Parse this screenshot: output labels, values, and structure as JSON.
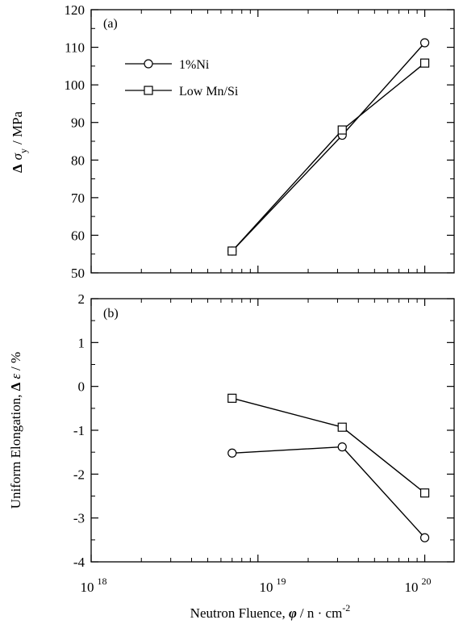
{
  "chart_data": [
    {
      "type": "line",
      "panel_label": "(a)",
      "xscale": "log",
      "xlim": [
        1e+18,
        1.5e+20
      ],
      "ylim": [
        50,
        120
      ],
      "yticks": [
        50,
        60,
        70,
        80,
        90,
        100,
        110,
        120
      ],
      "ytick_labels": [
        "50",
        "60",
        "70",
        "80",
        "90",
        "100",
        "110",
        "120"
      ],
      "ylabel_parts": [
        "Δ",
        "σ",
        "y",
        "/ MPa"
      ],
      "legend_position": "upper-left",
      "series": [
        {
          "name": "1%Ni",
          "marker": "circle",
          "x": [
            7e+18,
            3.2e+19,
            1e+20
          ],
          "y": [
            55.8,
            86.6,
            111.2
          ]
        },
        {
          "name": "Low Mn/Si",
          "marker": "square",
          "x": [
            7e+18,
            3.2e+19,
            1e+20
          ],
          "y": [
            55.8,
            88.0,
            105.8
          ]
        }
      ]
    },
    {
      "type": "line",
      "panel_label": "(b)",
      "xscale": "log",
      "xlim": [
        1e+18,
        1.5e+20
      ],
      "ylim": [
        -4,
        2
      ],
      "yticks": [
        -4,
        -3,
        -2,
        -1,
        0,
        1,
        2
      ],
      "ytick_labels": [
        "-4",
        "-3",
        "-2",
        "-1",
        "0",
        "1",
        "2"
      ],
      "ylabel_parts": [
        "Uniform Elongation, ",
        "Δ",
        "ε",
        "/ %"
      ],
      "xlabel_parts": [
        "Neutron Fluence, ",
        "φ",
        "/ n · cm",
        "-2"
      ],
      "xtick_labels": [
        {
          "base": "10",
          "exp": "18"
        },
        {
          "base": "10",
          "exp": "19"
        },
        {
          "base": "10",
          "exp": "20"
        }
      ],
      "series": [
        {
          "name": "1%Ni",
          "marker": "circle",
          "x": [
            7e+18,
            3.2e+19,
            1e+20
          ],
          "y": [
            -1.52,
            -1.38,
            -3.45
          ]
        },
        {
          "name": "Low Mn/Si",
          "marker": "square",
          "x": [
            7e+18,
            3.2e+19,
            1e+20
          ],
          "y": [
            -0.27,
            -0.93,
            -2.43
          ]
        }
      ]
    }
  ]
}
